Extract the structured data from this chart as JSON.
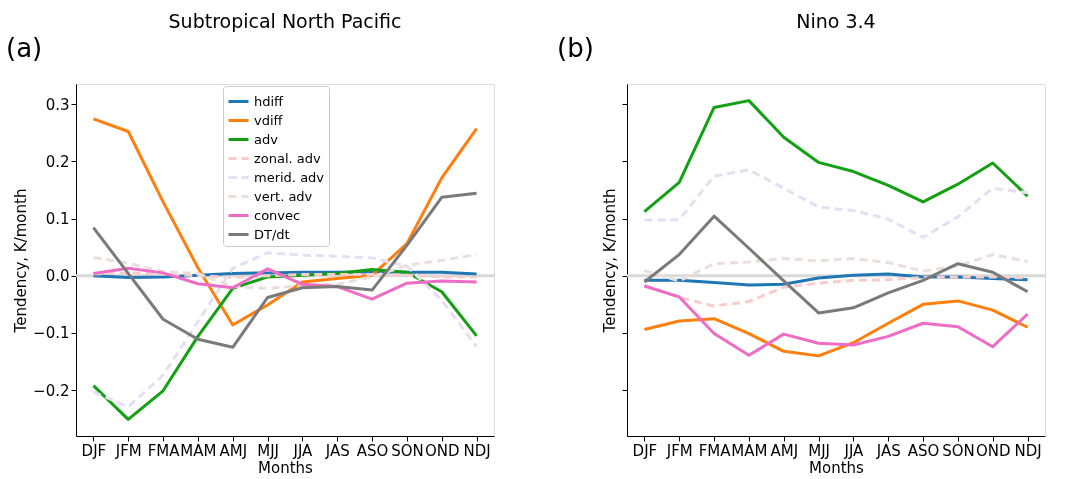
{
  "chart_data": [
    {
      "type": "line",
      "title": "Subtropical North Pacific",
      "xlabel": "Months",
      "ylabel": "Tendency, K/month",
      "annotations": [
        "(a)"
      ],
      "legend": "top",
      "grid": false,
      "marker": "none",
      "categories": [
        "DJF",
        "JFM",
        "FMA",
        "MAM",
        "AMJ",
        "MJJ",
        "JJA",
        "JAS",
        "ASO",
        "SON",
        "OND",
        "NDJ"
      ],
      "ylim": [
        -0.28,
        0.335
      ],
      "yticks": [
        {
          "value": -0.2,
          "label": "−0.2"
        },
        {
          "value": -0.1,
          "label": "−0.1"
        },
        {
          "value": 0,
          "label": "0.0"
        },
        0.1,
        0.2,
        0.3
      ],
      "ref_lines": [
        {
          "axis": "y",
          "value": 0,
          "color": "#d9d9d9"
        }
      ],
      "series": [
        {
          "name": "hdiff",
          "color": "#1f77b4",
          "line_style": "solid",
          "values": [
            0.0,
            -0.003,
            -0.002,
            0.001,
            0.004,
            0.005,
            0.006,
            0.006,
            0.007,
            0.006,
            0.006,
            0.003
          ]
        },
        {
          "name": "vdiff",
          "color": "#ff7f0e",
          "line_style": "solid",
          "values": [
            0.274,
            0.252,
            0.129,
            0.014,
            -0.086,
            -0.051,
            -0.011,
            -0.005,
            0.001,
            0.056,
            0.171,
            0.257
          ]
        },
        {
          "name": "adv",
          "color": "#14a014",
          "line_style": "solid",
          "values": [
            -0.192,
            -0.251,
            -0.201,
            -0.106,
            -0.022,
            -0.002,
            0.001,
            0.004,
            0.011,
            0.006,
            -0.028,
            -0.105
          ]
        },
        {
          "name": "zonal. adv",
          "color": "#f9cccc",
          "line_style": "dashed",
          "values": [
            0.003,
            0.005,
            0.003,
            0.0,
            -0.003,
            0.0,
            0.002,
            0.002,
            0.002,
            0.001,
            -0.002,
            -0.002
          ]
        },
        {
          "name": "merid. adv",
          "color": "#e6def2",
          "line_style": "dashed",
          "values": [
            -0.203,
            -0.229,
            -0.174,
            -0.08,
            0.013,
            0.04,
            0.036,
            0.034,
            0.031,
            0.017,
            -0.043,
            -0.124
          ]
        },
        {
          "name": "vert. adv",
          "color": "#eadfda",
          "line_style": "dashed",
          "values": [
            0.032,
            0.022,
            0.007,
            0.004,
            -0.019,
            -0.022,
            -0.017,
            -0.015,
            -0.002,
            0.018,
            0.027,
            0.037
          ]
        },
        {
          "name": "convec",
          "color": "#ee6cc5",
          "line_style": "solid",
          "values": [
            0.004,
            0.013,
            0.005,
            -0.014,
            -0.021,
            0.012,
            -0.015,
            -0.019,
            -0.041,
            -0.013,
            -0.009,
            -0.011
          ]
        },
        {
          "name": "DT/dt",
          "color": "#7a7a7a",
          "line_style": "solid",
          "values": [
            0.084,
            0.004,
            -0.076,
            -0.111,
            -0.125,
            -0.038,
            -0.021,
            -0.019,
            -0.025,
            0.053,
            0.137,
            0.144
          ]
        }
      ]
    },
    {
      "type": "line",
      "title": "Nino 3.4",
      "xlabel": "Months",
      "ylabel": "Tendency, K/month",
      "annotations": [
        "(b)"
      ],
      "legend": "top right",
      "grid": false,
      "marker": "none",
      "tick_labels": "x",
      "categories": [
        "DJF",
        "JFM",
        "FMA",
        "MAM",
        "AMJ",
        "MJJ",
        "JJA",
        "JAS",
        "ASO",
        "SON",
        "OND",
        "NDJ"
      ],
      "ylim": [
        -0.28,
        0.335
      ],
      "yticks": [
        {
          "value": -0.2,
          "label": null
        },
        {
          "value": -0.1,
          "label": null
        },
        {
          "value": 0,
          "label": null
        },
        {
          "value": 0.1,
          "label": null
        },
        {
          "value": 0.2,
          "label": null
        },
        {
          "value": 0.3,
          "label": null
        }
      ],
      "ref_lines": [
        {
          "axis": "y",
          "value": 0,
          "color": "#d9d9d9"
        }
      ],
      "series": [
        {
          "name": "hdiff",
          "color": "#1f77b4",
          "line_style": "solid",
          "values": [
            -0.008,
            -0.008,
            -0.012,
            -0.016,
            -0.015,
            -0.004,
            0.001,
            0.003,
            -0.002,
            -0.002,
            -0.005,
            -0.007
          ]
        },
        {
          "name": "vdiff",
          "color": "#ff7f0e",
          "line_style": "solid",
          "values": [
            -0.094,
            -0.079,
            -0.075,
            -0.101,
            -0.132,
            -0.14,
            -0.117,
            -0.083,
            -0.05,
            -0.044,
            -0.06,
            -0.09
          ]
        },
        {
          "name": "adv",
          "color": "#14a014",
          "line_style": "solid",
          "values": [
            0.112,
            0.163,
            0.294,
            0.306,
            0.242,
            0.198,
            0.182,
            0.158,
            0.129,
            0.16,
            0.197,
            0.139
          ]
        },
        {
          "name": "zonal. adv",
          "color": "#f9cccc",
          "line_style": "dashed",
          "values": [
            -0.017,
            -0.038,
            -0.053,
            -0.045,
            -0.02,
            -0.013,
            -0.008,
            -0.007,
            -0.003,
            -0.002,
            -0.002,
            -0.004
          ]
        },
        {
          "name": "merid. adv",
          "color": "#e6def2",
          "line_style": "dashed",
          "values": [
            0.097,
            0.098,
            0.174,
            0.185,
            0.153,
            0.12,
            0.114,
            0.099,
            0.067,
            0.103,
            0.153,
            0.145
          ]
        },
        {
          "name": "vert. adv",
          "color": "#eadfda",
          "line_style": "dashed",
          "values": [
            0.009,
            -0.009,
            0.021,
            0.024,
            0.03,
            0.026,
            0.03,
            0.023,
            0.008,
            0.017,
            0.037,
            0.025
          ]
        },
        {
          "name": "convec",
          "color": "#ee6cc5",
          "line_style": "solid",
          "values": [
            -0.018,
            -0.037,
            -0.101,
            -0.139,
            -0.102,
            -0.118,
            -0.121,
            -0.106,
            -0.083,
            -0.089,
            -0.124,
            -0.067
          ]
        },
        {
          "name": "DT/dt",
          "color": "#7a7a7a",
          "line_style": "solid",
          "values": [
            -0.011,
            0.037,
            0.104,
            0.048,
            -0.009,
            -0.065,
            -0.056,
            -0.03,
            -0.008,
            0.021,
            0.006,
            -0.028
          ]
        }
      ]
    }
  ]
}
